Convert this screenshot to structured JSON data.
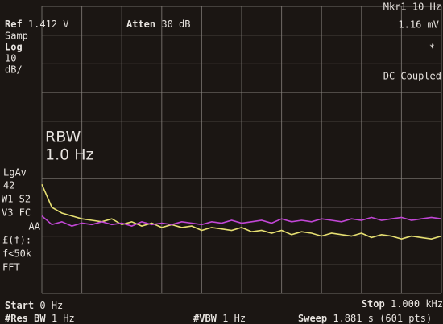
{
  "chart_data": {
    "type": "line",
    "x": [
      0,
      25,
      50,
      75,
      100,
      125,
      150,
      175,
      200,
      225,
      250,
      275,
      300,
      325,
      350,
      375,
      400,
      425,
      450,
      475,
      500,
      525,
      550,
      575,
      600,
      625,
      650,
      675,
      700,
      725,
      750,
      775,
      800,
      825,
      850,
      875,
      900,
      925,
      950,
      975,
      1000
    ],
    "xlim": [
      0,
      1000
    ],
    "ylim": [
      -100,
      0
    ],
    "grid": true,
    "series": [
      {
        "color": "#e6df72",
        "values": [
          -62,
          -70,
          -72,
          -73,
          -74,
          -74.5,
          -75,
          -74,
          -76,
          -75,
          -76.5,
          -75.5,
          -77,
          -76,
          -77,
          -76.5,
          -78,
          -77,
          -77.5,
          -78,
          -77,
          -78.5,
          -78,
          -79,
          -78,
          -79.5,
          -78.5,
          -79,
          -80,
          -79,
          -79.5,
          -80,
          -79,
          -80.5,
          -79.5,
          -80,
          -81,
          -80,
          -80.5,
          -81,
          -80
        ]
      },
      {
        "color": "#c247d6",
        "values": [
          -73,
          -76,
          -75,
          -76.5,
          -75.5,
          -76,
          -75,
          -76,
          -75.5,
          -76.5,
          -75,
          -76,
          -75.5,
          -76,
          -75,
          -75.5,
          -76,
          -75,
          -75.5,
          -74.5,
          -75.5,
          -75,
          -74.5,
          -75.5,
          -74,
          -75,
          -74.5,
          -75,
          -74,
          -74.5,
          -75,
          -74,
          -74.5,
          -73.5,
          -74.5,
          -74,
          -73.5,
          -74.5,
          -74,
          -73.5,
          -74
        ]
      }
    ],
    "ref": {
      "label": "Ref",
      "value": "1.412 V"
    },
    "atten": {
      "label": "Atten",
      "value": "30 dB"
    },
    "marker": {
      "label": "Mkr1 10 Hz",
      "value": "1.16 mV",
      "flag": "*"
    },
    "coupling": "DC Coupled",
    "left_panel": [
      "Samp",
      "Log",
      "10",
      "dB/"
    ],
    "left_panel_lower": [
      "LgAv",
      "42",
      "W1  S2",
      "V3  FC",
      "AA",
      "£(f):",
      "f<50k",
      "FFT"
    ],
    "rbw": {
      "label": "RBW",
      "value": "1.0 Hz"
    },
    "start": {
      "label": "Start",
      "value": "0 Hz"
    },
    "stop": {
      "label": "Stop",
      "value": "1.000 kHz"
    },
    "res_bw": {
      "label": "#Res BW",
      "value": "1 Hz"
    },
    "vbw": {
      "label": "#VBW",
      "value": "1 Hz"
    },
    "sweep": {
      "label": "Sweep",
      "value": "1.881 s (601 pts)"
    }
  }
}
